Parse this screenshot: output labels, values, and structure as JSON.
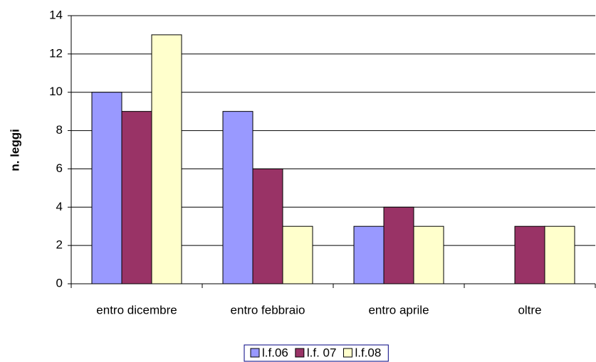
{
  "chart_data": {
    "type": "bar",
    "y_label": "n. leggi",
    "categories": [
      "entro dicembre",
      "entro febbraio",
      "entro aprile",
      "oltre"
    ],
    "series": [
      {
        "name": "l.f.06",
        "color": "#9999ff",
        "values": [
          10,
          9,
          3,
          0
        ]
      },
      {
        "name": "l.f. 07",
        "color": "#993366",
        "values": [
          9,
          6,
          4,
          3
        ]
      },
      {
        "name": "l.f.08",
        "color": "#ffffcc",
        "values": [
          13,
          3,
          3,
          3
        ]
      }
    ],
    "ylim": [
      0,
      14
    ],
    "yticks": [
      0,
      2,
      4,
      6,
      8,
      10,
      12,
      14
    ],
    "grid": true,
    "legend": "bottom"
  }
}
